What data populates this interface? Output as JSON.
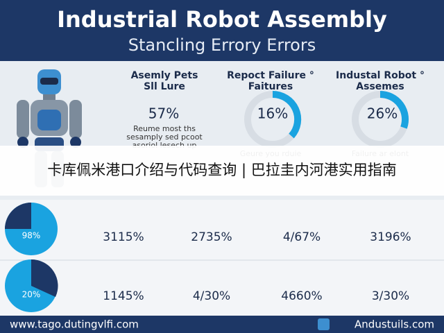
{
  "header": {
    "title": "Industrial Robot Assembly",
    "subtitle": "Stancling Errory Errors"
  },
  "columns": [
    {
      "heading": [
        "Asemly Pets",
        "Sll Lure"
      ],
      "value": "57%",
      "text": [
        "Reume most ths",
        "sesamply sed pcoot",
        "asoriol lesech up"
      ]
    },
    {
      "heading": [
        "Repoct Failure °",
        "Faitures"
      ],
      "value": "16%",
      "text": [
        "Geure you rduie"
      ]
    },
    {
      "heading": [
        "Industal Robot °",
        "Assemes"
      ],
      "value": "26%",
      "text": [
        "Failure ar elont"
      ]
    }
  ],
  "banner": "卡库佩米港口介绍与代码查询 | 巴拉圭内河港实用指南",
  "table": {
    "rows": [
      [
        "98%",
        "3115%",
        "2735%",
        "4/67%",
        "3196%"
      ],
      [
        "20%",
        "1145%",
        "4/30%",
        "4660%",
        "3/30%"
      ]
    ]
  },
  "footer": {
    "left": "www.tago.dutingvlfi.com",
    "right": "Andustuils.com"
  }
}
